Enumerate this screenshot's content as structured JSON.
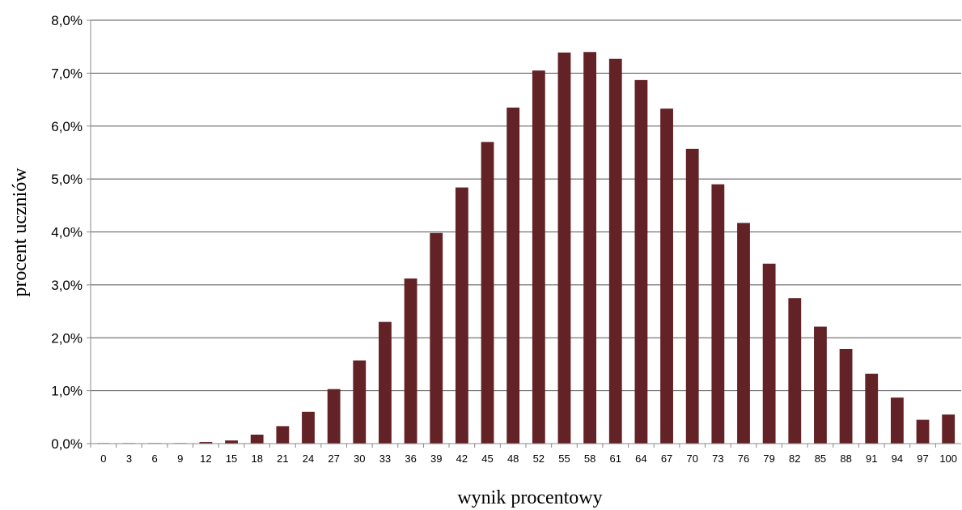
{
  "chart_data": {
    "type": "bar",
    "title": "",
    "xlabel": "wynik procentowy",
    "ylabel": "procent uczniów",
    "categories": [
      "0",
      "3",
      "6",
      "9",
      "12",
      "15",
      "18",
      "21",
      "24",
      "27",
      "30",
      "33",
      "36",
      "39",
      "42",
      "45",
      "48",
      "52",
      "55",
      "58",
      "61",
      "64",
      "67",
      "70",
      "73",
      "76",
      "79",
      "82",
      "85",
      "88",
      "91",
      "94",
      "97",
      "100"
    ],
    "values": [
      0.01,
      0.01,
      0.01,
      0.01,
      0.03,
      0.06,
      0.17,
      0.33,
      0.6,
      1.03,
      1.57,
      2.3,
      3.12,
      3.98,
      4.84,
      5.7,
      6.35,
      7.05,
      7.39,
      7.4,
      7.27,
      6.87,
      6.33,
      5.57,
      4.9,
      4.17,
      3.4,
      2.75,
      2.21,
      1.79,
      1.32,
      0.87,
      0.45,
      0.55
    ],
    "ylim": [
      0,
      8
    ],
    "yticks": [
      0,
      1,
      2,
      3,
      4,
      5,
      6,
      7,
      8
    ],
    "ytick_labels": [
      "0,0%",
      "1,0%",
      "2,0%",
      "3,0%",
      "4,0%",
      "5,0%",
      "6,0%",
      "7,0%",
      "8,0%"
    ],
    "grid": true,
    "bar_color": "#632326"
  }
}
